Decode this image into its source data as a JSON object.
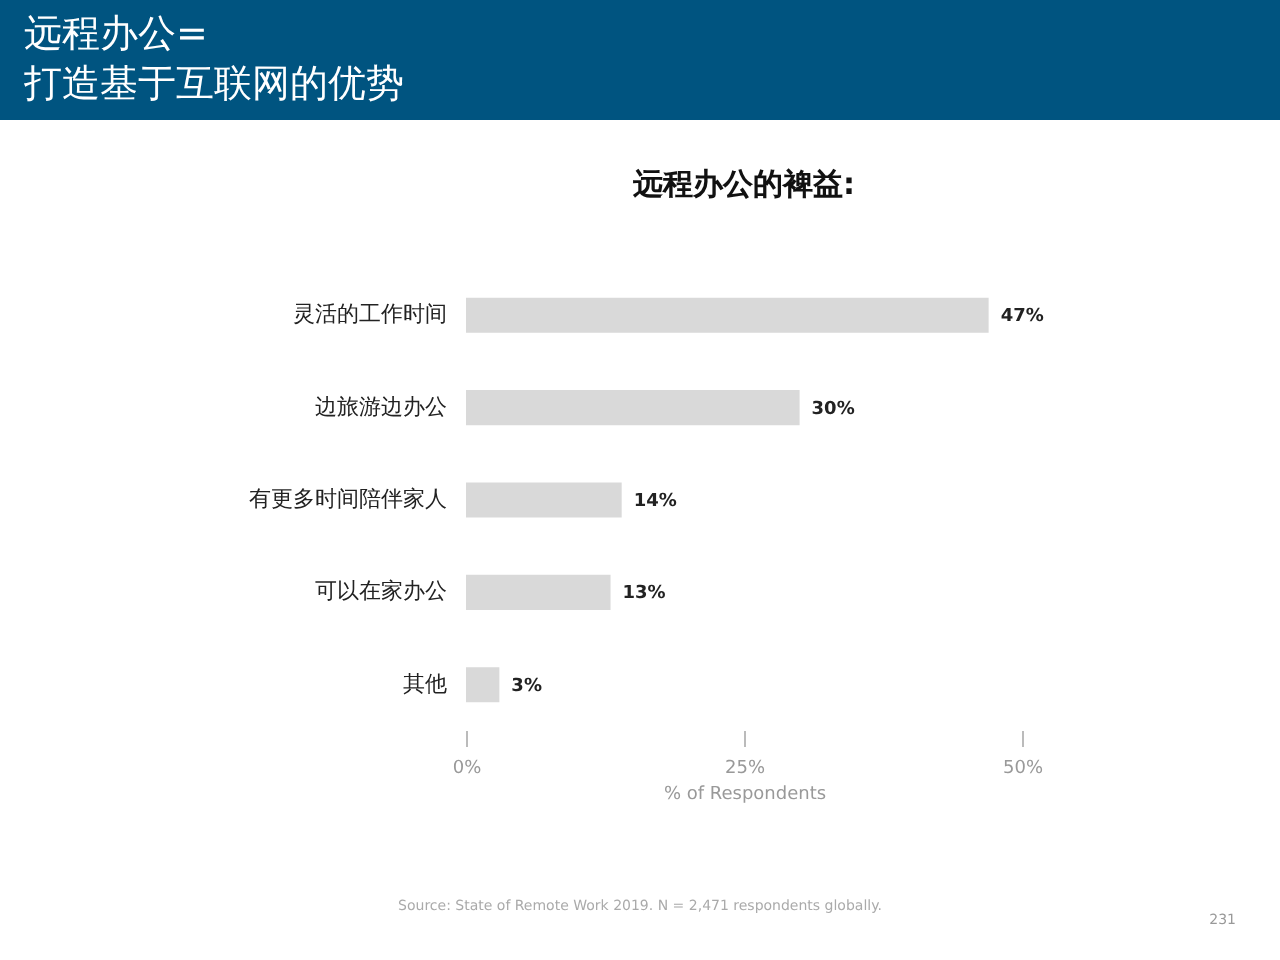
{
  "chart_data": {
    "type": "bar",
    "orientation": "horizontal",
    "title": "远程办公=\n打造基于互联网的优势",
    "subtitle": "远程办公的裨益:",
    "categories": [
      "灵活的工作时间",
      "边旅游边办公",
      "有更多时间陪伴家人",
      "可以在家办公",
      "其他"
    ],
    "values": [
      47,
      30,
      14,
      13,
      3
    ],
    "value_labels": [
      "47%",
      "30%",
      "14%",
      "13%",
      "3%"
    ],
    "color": "#d9d9d9",
    "xlim": [
      0,
      50
    ],
    "xticks": [
      {
        "value": 0,
        "label": "0%"
      },
      {
        "value": 25,
        "label": "25%"
      },
      {
        "value": 50,
        "label": "50%"
      }
    ],
    "xlabel": "% of Respondents",
    "annotations": [
      "Source: State of Remote Work 2019. N = 2,471 respondents globally.",
      "231"
    ]
  }
}
